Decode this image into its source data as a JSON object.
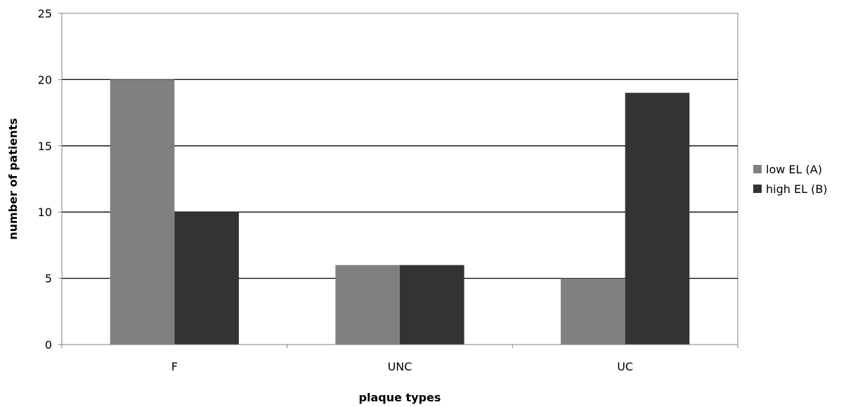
{
  "chart_data": {
    "type": "bar",
    "categories": [
      "F",
      "UNC",
      "UC"
    ],
    "series": [
      {
        "name": "low EL (A)",
        "values": [
          20,
          6,
          5
        ],
        "color": "#808080"
      },
      {
        "name": "high EL (B)",
        "values": [
          10,
          6,
          19
        ],
        "color": "#333333"
      }
    ],
    "xlabel": "plaque types",
    "ylabel": "number of patients",
    "ylim": [
      0,
      25
    ],
    "yticks": [
      0,
      5,
      10,
      15,
      20,
      25
    ],
    "grid": true,
    "legend": "right"
  }
}
